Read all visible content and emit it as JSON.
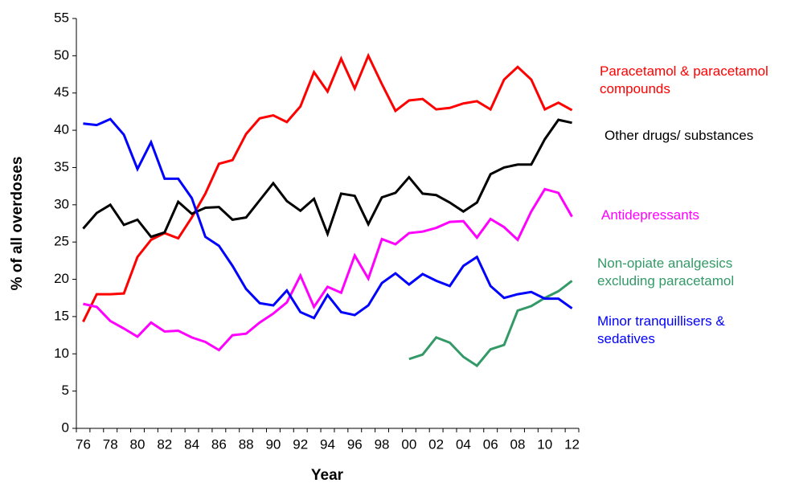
{
  "chart_data": {
    "type": "line",
    "y_label": "% of all overdoses",
    "x_label": "Year",
    "categories": [
      "76",
      null,
      "78",
      null,
      "80",
      null,
      "82",
      null,
      "84",
      null,
      "86",
      null,
      "88",
      null,
      "90",
      null,
      "92",
      null,
      "94",
      null,
      "96",
      null,
      "98",
      null,
      "00",
      null,
      "02",
      null,
      "04",
      null,
      "06",
      null,
      "08",
      null,
      "10",
      null,
      "12"
    ],
    "ylim": [
      0,
      55
    ],
    "yticks": [
      0,
      5,
      10,
      15,
      20,
      25,
      30,
      35,
      40,
      45,
      50,
      55
    ],
    "series": [
      {
        "name": "Paracetamol & paracetamol compounds",
        "color": "#ff0000",
        "values": [
          14.3,
          18,
          18,
          18.1,
          23,
          25.3,
          26.2,
          25.5,
          28.3,
          31.5,
          35.5,
          36,
          39.5,
          41.6,
          42,
          41.1,
          43.2,
          47.8,
          45.2,
          49.6,
          45.6,
          50,
          46.2,
          42.6,
          44,
          44.2,
          42.8,
          43,
          43.6,
          43.9,
          42.8,
          46.8,
          48.5,
          46.8,
          42.8,
          43.7,
          42.7
        ]
      },
      {
        "name": "Other drugs/ substances",
        "color": "#000000",
        "values": [
          26.8,
          28.9,
          30,
          27.3,
          28,
          25.7,
          26.3,
          30.4,
          28.8,
          29.6,
          29.7,
          28,
          28.3,
          30.6,
          32.9,
          30.5,
          29.2,
          30.8,
          26.1,
          31.5,
          31.2,
          27.4,
          31,
          31.6,
          33.7,
          31.5,
          31.3,
          30.3,
          29.1,
          30.3,
          34.1,
          35,
          35.4,
          35.4,
          38.8,
          41.4,
          41
        ]
      },
      {
        "name": "Antidepressants",
        "color": "#ff00ff",
        "values": [
          16.7,
          16.3,
          14.4,
          13.4,
          12.3,
          14.2,
          13,
          13.1,
          12.2,
          11.6,
          10.5,
          12.5,
          12.7,
          14.2,
          15.4,
          16.9,
          20.5,
          16.3,
          19,
          18.2,
          23.2,
          20.1,
          25.4,
          24.7,
          26.2,
          26.4,
          26.9,
          27.7,
          27.8,
          25.6,
          28.1,
          27,
          25.3,
          29.1,
          32.1,
          31.6,
          28.4
        ]
      },
      {
        "name": "Non-opiate analgesics excluding paracetamol",
        "color": "#339966",
        "values": [
          null,
          null,
          null,
          null,
          null,
          null,
          null,
          null,
          null,
          null,
          null,
          null,
          null,
          null,
          null,
          null,
          null,
          null,
          null,
          null,
          null,
          null,
          null,
          null,
          9.3,
          9.9,
          12.2,
          11.5,
          9.6,
          8.4,
          10.6,
          11.2,
          15.8,
          16.4,
          17.5,
          18.4,
          19.8
        ]
      },
      {
        "name": "Minor tranquillisers & sedatives",
        "color": "#0000ff",
        "values": [
          40.9,
          40.7,
          41.5,
          39.4,
          34.8,
          38.4,
          33.5,
          33.5,
          30.9,
          25.7,
          24.5,
          21.8,
          18.7,
          16.8,
          16.5,
          18.5,
          15.6,
          14.8,
          17.9,
          15.6,
          15.2,
          16.5,
          19.5,
          20.8,
          19.3,
          20.7,
          19.8,
          19.1,
          21.8,
          23,
          19.1,
          17.5,
          18,
          18.3,
          17.4,
          17.4,
          16.1
        ]
      }
    ]
  }
}
